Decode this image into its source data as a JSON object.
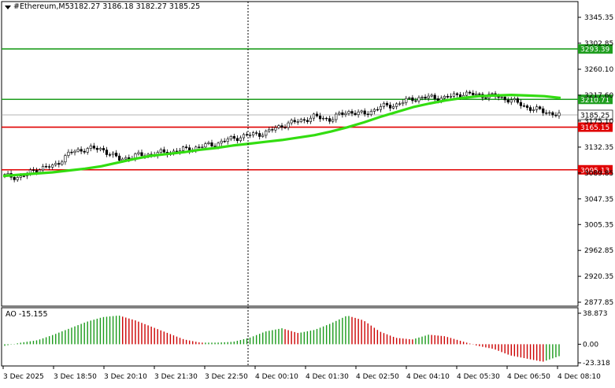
{
  "header": {
    "symbol": "#Ethereum,M5",
    "ohlc": "3182.27 3186.18 3182.27 3185.25"
  },
  "price_axis": {
    "ticks": [
      "3345.35",
      "3302.85",
      "3260.10",
      "3217.60",
      "3175.10",
      "3132.35",
      "3089.85",
      "3047.35",
      "3005.35",
      "2962.85",
      "2920.35",
      "2877.85"
    ]
  },
  "levels": [
    {
      "label": "3293.39",
      "value": 3293.39,
      "color": "#1f9e1f"
    },
    {
      "label": "3210.71",
      "value": 3210.71,
      "color": "#1f9e1f"
    },
    {
      "label": "3165.15",
      "value": 3165.15,
      "color": "#e00000"
    },
    {
      "label": "3095.13",
      "value": 3095.13,
      "color": "#e00000"
    }
  ],
  "current_price": {
    "label": "3185.25",
    "value": 3185.25
  },
  "indicator": {
    "title": "AO -15.155",
    "ticks": [
      "38.873",
      "0.00",
      "-23.318"
    ],
    "max": 38.873,
    "min": -23.318
  },
  "time_axis": {
    "labels": [
      "3 Dec 2025",
      "3 Dec 18:50",
      "3 Dec 20:10",
      "3 Dec 21:30",
      "3 Dec 22:50",
      "4 Dec 00:10",
      "4 Dec 01:30",
      "4 Dec 02:50",
      "4 Dec 04:10",
      "4 Dec 05:30",
      "4 Dec 06:50",
      "4 Dec 08:10"
    ]
  },
  "colors": {
    "ma_line": "#33dd11",
    "ao_up": "#1a9a1a",
    "ao_down": "#cc0000",
    "grid": "#c8c8c8"
  },
  "chart_data": {
    "type": "candlestick",
    "ma_values": [
      3085,
      3087,
      3089,
      3091,
      3094,
      3097,
      3101,
      3107,
      3113,
      3118,
      3121,
      3124,
      3128,
      3131,
      3135,
      3138,
      3141,
      3144,
      3148,
      3152,
      3158,
      3165,
      3173,
      3182,
      3190,
      3198,
      3204,
      3209,
      3213,
      3216,
      3217,
      3218,
      3217,
      3216,
      3213
    ],
    "close_values": [
      3085,
      3083,
      3097,
      3101,
      3123,
      3130,
      3129,
      3112,
      3118,
      3121,
      3124,
      3128,
      3133,
      3138,
      3147,
      3152,
      3156,
      3168,
      3175,
      3182,
      3178,
      3191,
      3186,
      3198,
      3202,
      3212,
      3214,
      3213,
      3220,
      3218,
      3216,
      3210,
      3198,
      3191,
      3185
    ],
    "ao_values": [
      -2,
      2,
      5,
      12,
      20,
      28,
      34,
      36,
      30,
      22,
      14,
      6,
      2,
      2,
      3,
      8,
      16,
      20,
      14,
      18,
      26,
      36,
      30,
      16,
      8,
      6,
      12,
      10,
      4,
      -2,
      -6,
      -14,
      -18,
      -22,
      -15
    ]
  }
}
